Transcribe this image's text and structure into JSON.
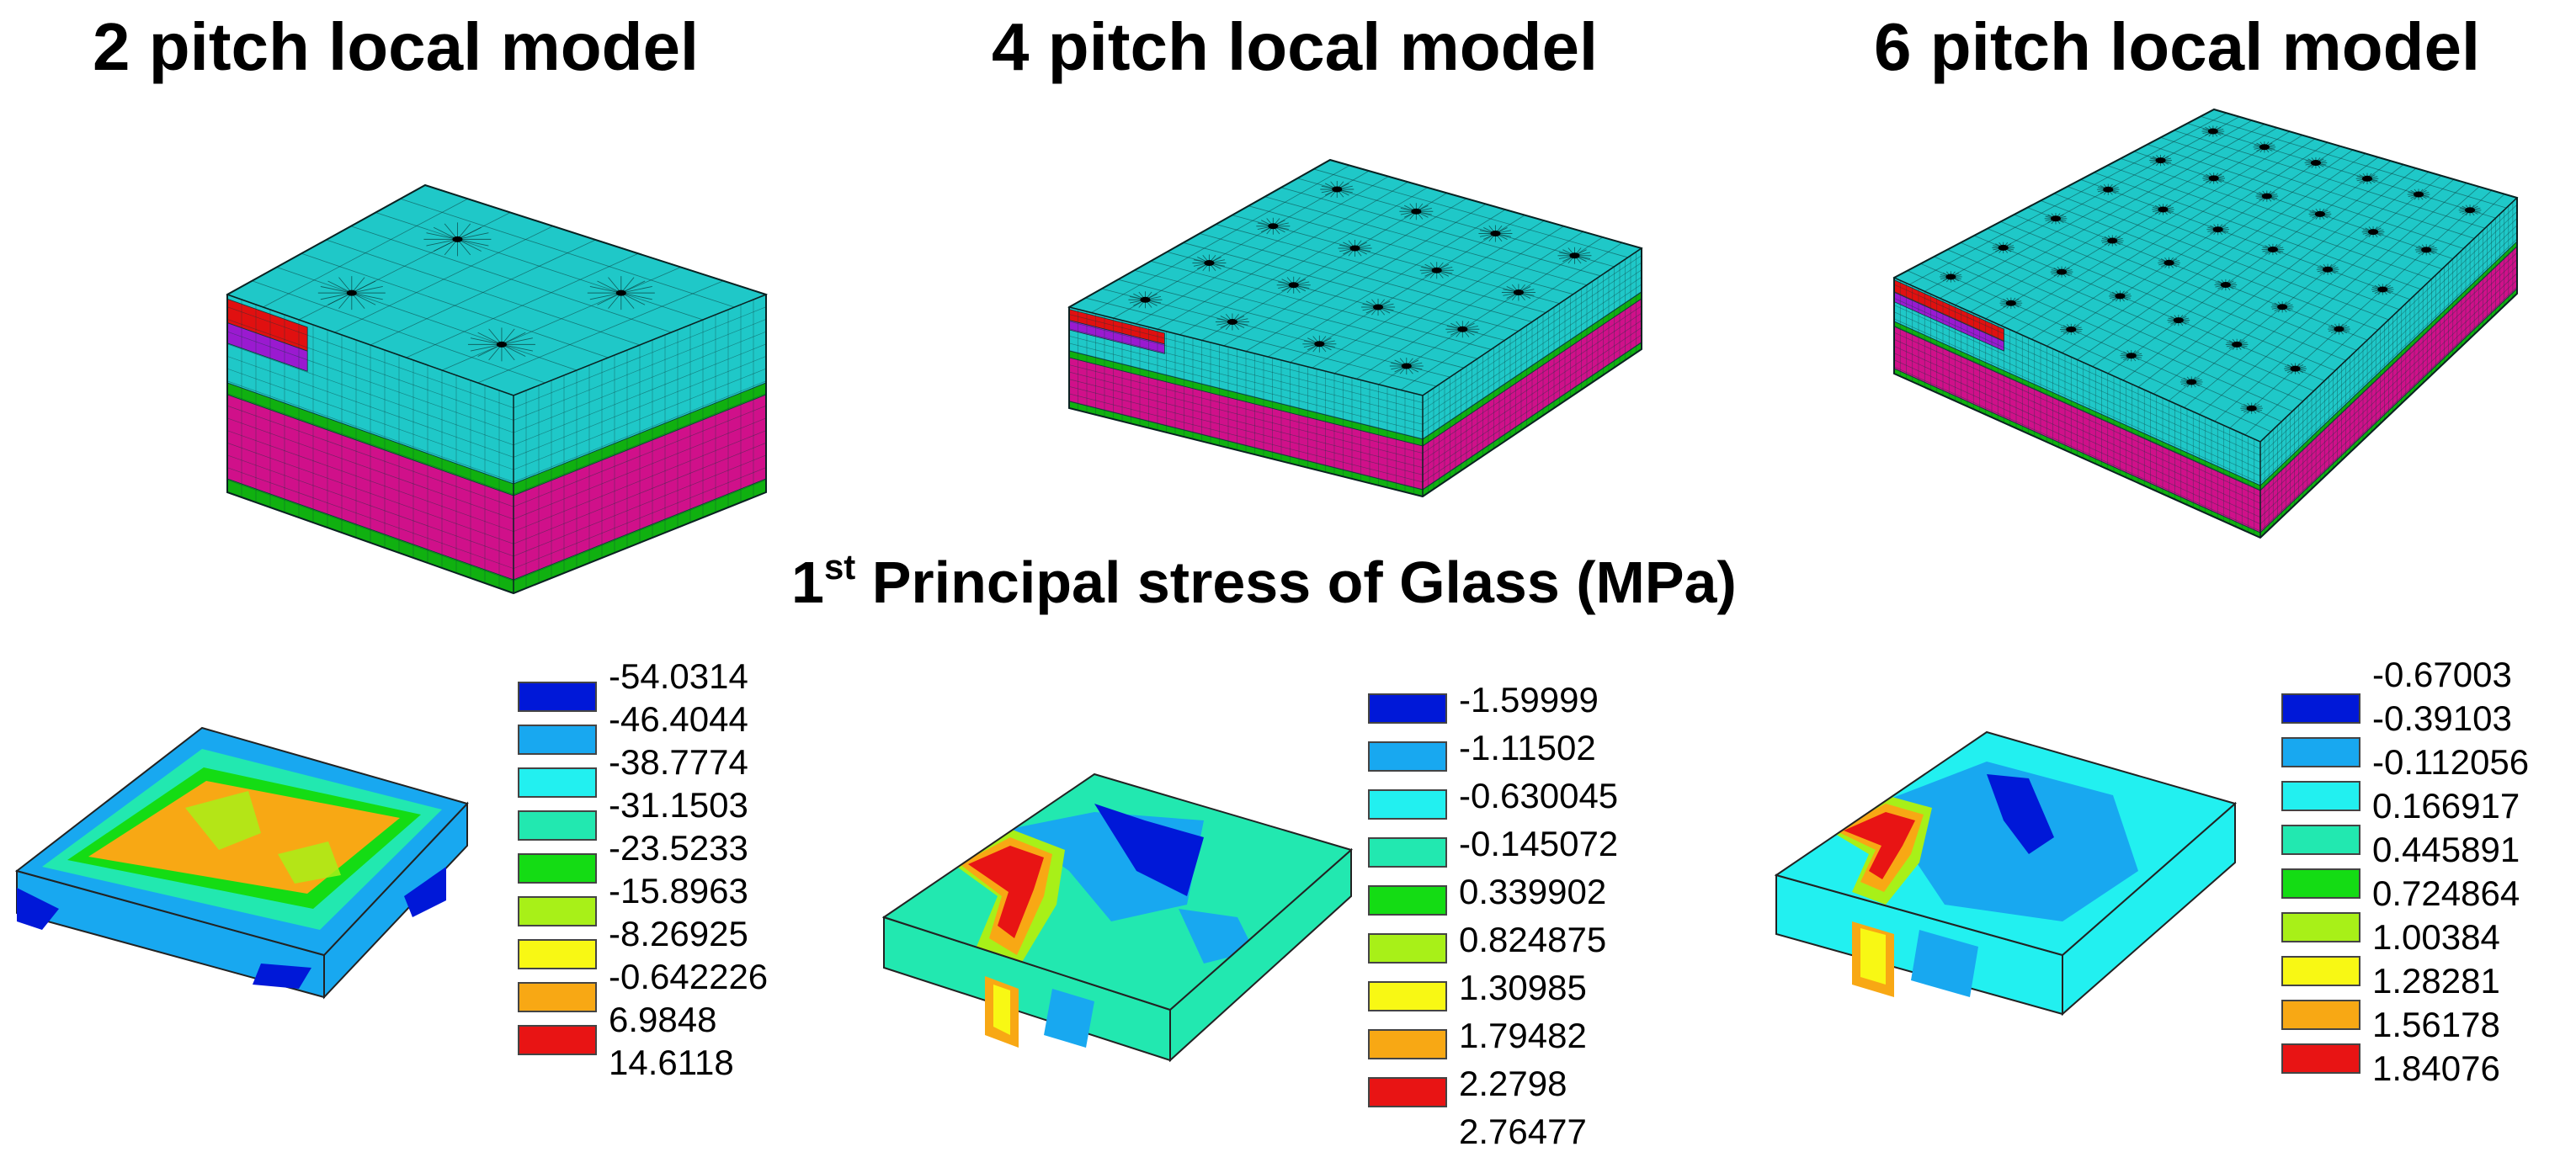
{
  "titles": {
    "model_2": "2 pitch local model",
    "model_4": "4 pitch local model",
    "model_6": "6 pitch local model"
  },
  "stress_title": {
    "prefix": "1",
    "superscript": "st",
    "rest": " Principal stress of Glass (MPa)"
  },
  "legend_colors": [
    "#0018d8",
    "#18a8f0",
    "#22f0f0",
    "#22e8b0",
    "#14dc14",
    "#a8f018",
    "#f8f814",
    "#f8a814",
    "#e81414"
  ],
  "layer_colors": {
    "glass": "#1fc8c8",
    "top_red": "#e01010",
    "purple": "#9a1ad0",
    "green": "#10b010",
    "magenta": "#d0108a",
    "mesh_line": "#0c3a3a"
  },
  "legends": {
    "model_2": [
      "-54.0314",
      "-46.4044",
      "-38.7774",
      "-31.1503",
      "-23.5233",
      "-15.8963",
      "-8.26925",
      "-0.642226",
      "6.9848",
      "14.6118"
    ],
    "model_4": [
      "-1.59999",
      "-1.11502",
      "-0.630045",
      "-0.145072",
      "0.339902",
      "0.824875",
      "1.30985",
      "1.79482",
      "2.2798",
      "2.76477"
    ],
    "model_6": [
      "-0.67003",
      "-0.39103",
      "-0.112056",
      "0.166917",
      "0.445891",
      "0.724864",
      "1.00384",
      "1.28281",
      "1.56178",
      "1.84076"
    ]
  }
}
